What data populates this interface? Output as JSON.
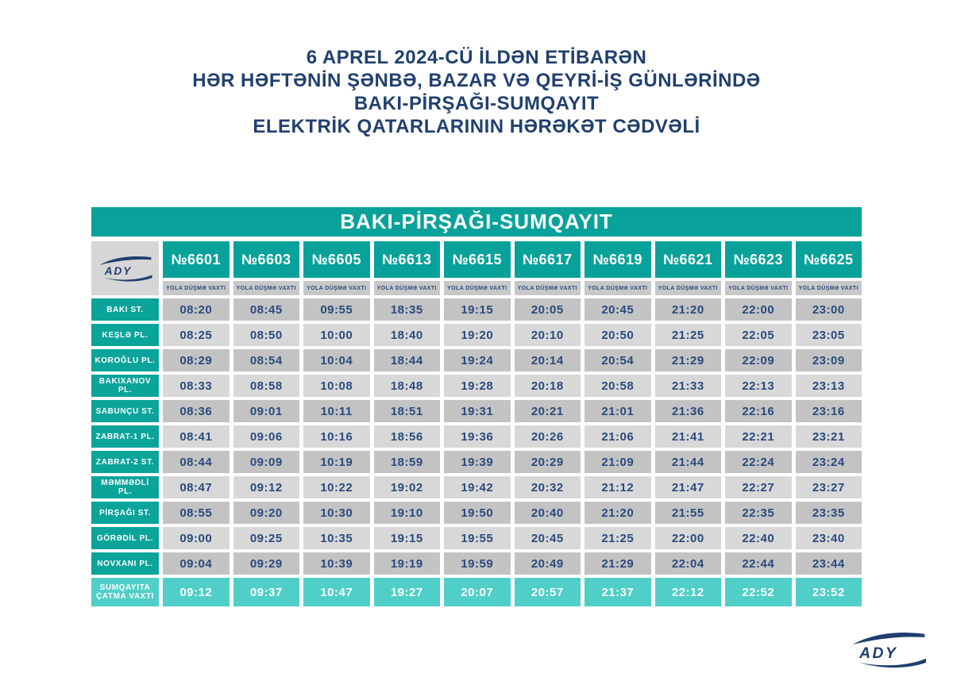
{
  "page_title": {
    "line1": "6 APREL 2024-CÜ İLDƏN ETİBARƏN",
    "line2": "HƏR HƏFTƏNİN ŞƏNBƏ, BAZAR VƏ QEYRİ-İŞ GÜNLƏRİNDƏ",
    "line3": "BAKI-PİRŞAĞI-SUMQAYIT",
    "line4": "ELEKTRİK QATARLARININ HƏRƏKƏT CƏDVƏLİ"
  },
  "logo": {
    "text": "ADY"
  },
  "colors": {
    "title_navy": "#21406f",
    "teal": "#09a29a",
    "light_teal": "#4fcfc8",
    "cell_gray_dark": "#c3c3c4",
    "cell_gray_light": "#d8d8d9",
    "time_navy": "#2a4b7c"
  },
  "table": {
    "route_title": "BAKI-PİRŞAĞI-SUMQAYIT",
    "departure_label": "YOLA DÜŞMƏ VAXTI",
    "trains": [
      "№6601",
      "№6603",
      "№6605",
      "№6613",
      "№6615",
      "№6617",
      "№6619",
      "№6621",
      "№6623",
      "№6625"
    ],
    "rows": [
      {
        "station": "BAKI ST.",
        "times": [
          "08:20",
          "08:45",
          "09:55",
          "18:35",
          "19:15",
          "20:05",
          "20:45",
          "21:20",
          "22:00",
          "23:00"
        ]
      },
      {
        "station": "KEŞLƏ PL.",
        "times": [
          "08:25",
          "08:50",
          "10:00",
          "18:40",
          "19:20",
          "20:10",
          "20:50",
          "21:25",
          "22:05",
          "23:05"
        ]
      },
      {
        "station": "KOROĞLU PL.",
        "times": [
          "08:29",
          "08:54",
          "10:04",
          "18:44",
          "19:24",
          "20:14",
          "20:54",
          "21:29",
          "22:09",
          "23:09"
        ]
      },
      {
        "station": "BAKIXANOV PL.",
        "times": [
          "08:33",
          "08:58",
          "10:08",
          "18:48",
          "19:28",
          "20:18",
          "20:58",
          "21:33",
          "22:13",
          "23:13"
        ]
      },
      {
        "station": "SABUNÇU ST.",
        "times": [
          "08:36",
          "09:01",
          "10:11",
          "18:51",
          "19:31",
          "20:21",
          "21:01",
          "21:36",
          "22:16",
          "23:16"
        ]
      },
      {
        "station": "ZABRAT-1 PL.",
        "times": [
          "08:41",
          "09:06",
          "10:16",
          "18:56",
          "19:36",
          "20:26",
          "21:06",
          "21:41",
          "22:21",
          "23:21"
        ]
      },
      {
        "station": "ZABRAT-2 ST.",
        "times": [
          "08:44",
          "09:09",
          "10:19",
          "18:59",
          "19:39",
          "20:29",
          "21:09",
          "21:44",
          "22:24",
          "23:24"
        ]
      },
      {
        "station": "MƏMMƏDLİ PL.",
        "times": [
          "08:47",
          "09:12",
          "10:22",
          "19:02",
          "19:42",
          "20:32",
          "21:12",
          "21:47",
          "22:27",
          "23:27"
        ]
      },
      {
        "station": "PİRŞAĞI ST.",
        "times": [
          "08:55",
          "09:20",
          "10:30",
          "19:10",
          "19:50",
          "20:40",
          "21:20",
          "21:55",
          "22:35",
          "23:35"
        ]
      },
      {
        "station": "GÖRƏDİL PL.",
        "times": [
          "09:00",
          "09:25",
          "10:35",
          "19:15",
          "19:55",
          "20:45",
          "21:25",
          "22:00",
          "22:40",
          "23:40"
        ]
      },
      {
        "station": "NOVXANI PL.",
        "times": [
          "09:04",
          "09:29",
          "10:39",
          "19:19",
          "19:59",
          "20:49",
          "21:29",
          "22:04",
          "22:44",
          "23:44"
        ]
      },
      {
        "station": "SUMQAYITA ÇATMA VAXTI",
        "times": [
          "09:12",
          "09:37",
          "10:47",
          "19:27",
          "20:07",
          "20:57",
          "21:37",
          "22:12",
          "22:52",
          "23:52"
        ],
        "final": true
      }
    ]
  }
}
